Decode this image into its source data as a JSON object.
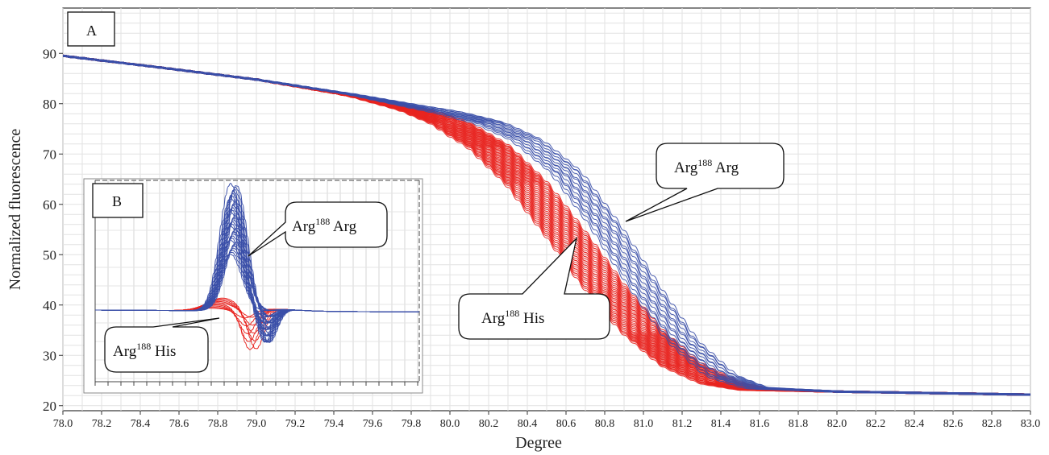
{
  "chart_data": [
    {
      "panel": "A",
      "type": "line",
      "xlabel": "Degree",
      "ylabel": "Normalized fluorescence",
      "xlim": [
        78.0,
        83.0
      ],
      "ylim": [
        19,
        99
      ],
      "x_ticks": [
        "78.0",
        "78.2",
        "78.4",
        "78.6",
        "78.8",
        "79.0",
        "79.2",
        "79.4",
        "79.6",
        "79.8",
        "80.0",
        "80.2",
        "80.4",
        "80.6",
        "80.8",
        "81.0",
        "81.2",
        "81.4",
        "81.6",
        "81.8",
        "82.0",
        "82.2",
        "82.4",
        "82.6",
        "82.8",
        "83.0"
      ],
      "y_ticks": [
        "20",
        "30",
        "40",
        "50",
        "60",
        "70",
        "80",
        "90"
      ],
      "grid": true,
      "series": [
        {
          "group": "Arg188 Arg",
          "color": "#3a4fa8",
          "x": [
            78.0,
            78.5,
            79.0,
            79.5,
            79.8,
            80.0,
            80.2,
            80.4,
            80.6,
            80.8,
            81.0,
            81.2,
            81.4,
            81.6,
            82.0,
            82.5,
            83.0
          ],
          "y": [
            89.5,
            87.2,
            84.8,
            81.8,
            79.6,
            78.2,
            76.3,
            72.8,
            66.5,
            56.0,
            44.0,
            33.0,
            26.0,
            23.5,
            22.8,
            22.5,
            22.2
          ]
        },
        {
          "group": "Arg188 His",
          "color": "#e8231f",
          "x": [
            78.0,
            78.5,
            79.0,
            79.5,
            79.8,
            80.0,
            80.2,
            80.4,
            80.6,
            80.8,
            81.0,
            81.2,
            81.4,
            81.6,
            82.0,
            82.5,
            83.0
          ],
          "y": [
            89.5,
            87.2,
            84.8,
            81.5,
            78.8,
            76.0,
            71.5,
            64.0,
            54.0,
            43.5,
            34.5,
            28.0,
            24.5,
            23.2,
            22.8,
            22.5,
            22.2
          ]
        }
      ],
      "annotations": [
        {
          "base": "Arg",
          "sup": "188",
          "rest": " Arg"
        },
        {
          "base": "Arg",
          "sup": "188",
          "rest": " His"
        }
      ]
    },
    {
      "panel": "B",
      "type": "line",
      "grid": true,
      "series": [
        {
          "group": "Arg188 Arg",
          "color": "#3a4fa8",
          "peak_height": 1.0
        },
        {
          "group": "Arg188 His",
          "color": "#e8231f",
          "peak_height": 0.15
        }
      ],
      "annotations": [
        {
          "base": "Arg",
          "sup": "188",
          "rest": " Arg"
        },
        {
          "base": "Arg",
          "sup": "188",
          "rest": " His"
        }
      ]
    }
  ]
}
